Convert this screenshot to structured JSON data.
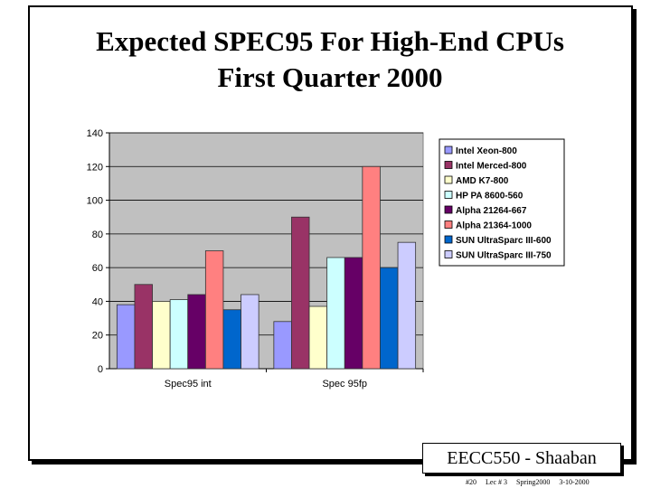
{
  "slide": {
    "title_line1": "Expected SPEC95 For High-End CPUs",
    "title_line2": "First Quarter 2000",
    "footer_label": "EECC550 - Shaaban",
    "footnote": {
      "slide_no": "#20",
      "lecture": "Lec # 3",
      "term": "Spring2000",
      "date": "3-10-2000"
    }
  },
  "chart_data": {
    "type": "bar",
    "title": "",
    "xlabel": "",
    "ylabel": "",
    "categories": [
      "Spec95 int",
      "Spec 95fp"
    ],
    "ylim": [
      0,
      140
    ],
    "yticks": [
      0,
      20,
      40,
      60,
      80,
      100,
      120,
      140
    ],
    "grid": true,
    "legend_position": "right",
    "plot_background": "#c0c0c0",
    "series": [
      {
        "name": "Intel Xeon-800",
        "color": "#9999ff",
        "values": [
          38,
          28
        ]
      },
      {
        "name": "Intel Merced-800",
        "color": "#993366",
        "values": [
          50,
          90
        ]
      },
      {
        "name": "AMD K7-800",
        "color": "#ffffcc",
        "values": [
          40,
          37
        ]
      },
      {
        "name": "HP PA 8600-560",
        "color": "#ccffff",
        "values": [
          41,
          66
        ]
      },
      {
        "name": "Alpha 21264-667",
        "color": "#660066",
        "values": [
          44,
          66
        ]
      },
      {
        "name": "Alpha 21364-1000",
        "color": "#ff8080",
        "values": [
          70,
          120
        ]
      },
      {
        "name": "SUN UltraSparc III-600",
        "color": "#0066cc",
        "values": [
          35,
          60
        ]
      },
      {
        "name": "SUN UltraSparc III-750",
        "color": "#ccccff",
        "values": [
          44,
          75
        ]
      }
    ]
  }
}
